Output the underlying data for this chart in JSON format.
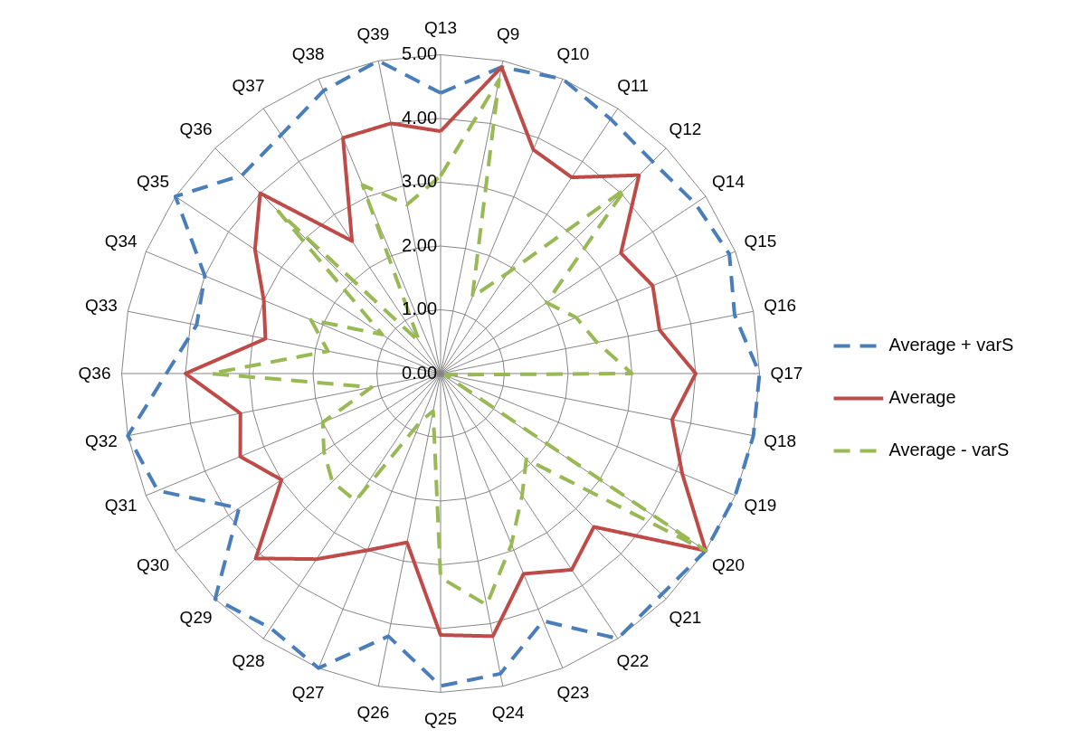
{
  "chart_data": {
    "type": "radar",
    "categories": [
      "Q13",
      "Q9",
      "Q10",
      "Q11",
      "Q12",
      "Q14",
      "Q15",
      "Q16",
      "Q17",
      "Q18",
      "Q19",
      "Q20",
      "Q21",
      "Q22",
      "Q23",
      "Q24",
      "Q25",
      "Q26",
      "Q27",
      "Q28",
      "Q29",
      "Q30",
      "Q31",
      "Q32",
      "Q36",
      "Q33",
      "Q34",
      "Q35",
      "Q36",
      "Q37",
      "Q38",
      "Q39"
    ],
    "series": [
      {
        "name": "Average + varS",
        "color": "#4a7ebb",
        "line_style": "dashed",
        "values": [
          4.4,
          4.9,
          5.0,
          4.8,
          4.7,
          4.8,
          4.9,
          4.7,
          5.0,
          5.0,
          5.0,
          5.0,
          4.9,
          5.0,
          4.2,
          4.8,
          4.9,
          4.2,
          5.0,
          4.8,
          5.0,
          3.8,
          4.8,
          5.0,
          4.3,
          3.9,
          4.0,
          5.0,
          4.4,
          4.5,
          4.8,
          5.0
        ]
      },
      {
        "name": "Average",
        "color": "#be4b48",
        "line_style": "solid",
        "values": [
          3.8,
          4.9,
          3.8,
          3.7,
          4.4,
          3.4,
          3.6,
          3.5,
          4.0,
          3.7,
          4.1,
          5.0,
          3.4,
          3.7,
          3.4,
          4.2,
          4.1,
          2.7,
          3.0,
          3.5,
          4.1,
          3.0,
          3.4,
          3.2,
          4.0,
          2.8,
          3.0,
          3.5,
          4.0,
          2.5,
          4.0,
          4.0
        ]
      },
      {
        "name": "Average - varS",
        "color": "#98b954",
        "line_style": "dashed",
        "values": [
          3.1,
          4.7,
          1.3,
          1.9,
          4.1,
          2.0,
          2.3,
          2.5,
          3.0,
          0.1,
          0.1,
          5.0,
          1.9,
          2.3,
          2.9,
          3.7,
          3.2,
          0.6,
          0.8,
          2.4,
          2.4,
          2.2,
          2.0,
          1.1,
          3.6,
          1.8,
          2.2,
          1.1,
          3.6,
          0.6,
          3.2,
          2.7
        ]
      }
    ],
    "ylim": [
      0,
      5
    ],
    "yticks": [
      {
        "value": 0,
        "label": "0.00"
      },
      {
        "value": 1,
        "label": "1.00"
      },
      {
        "value": 2,
        "label": "2.00"
      },
      {
        "value": 3,
        "label": "3.00"
      },
      {
        "value": 4,
        "label": "4.00"
      },
      {
        "value": 5,
        "label": "5.00"
      }
    ],
    "grid": true,
    "legend": "right"
  }
}
